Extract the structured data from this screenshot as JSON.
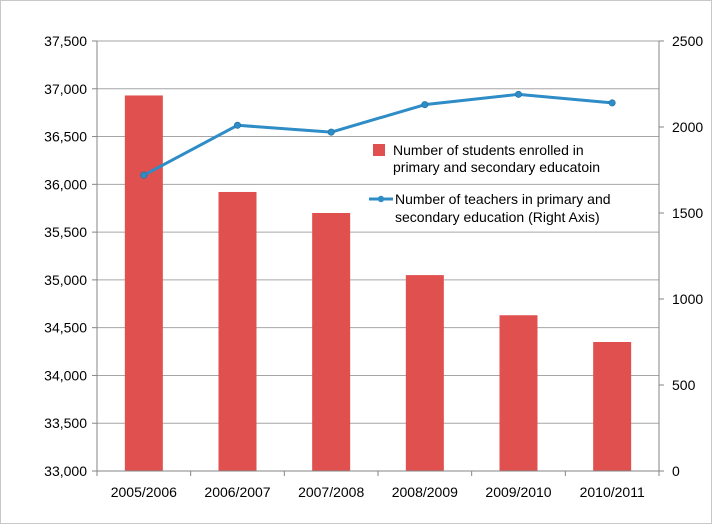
{
  "chart_data": {
    "type": "bar",
    "categories": [
      "2005/2006",
      "2006/2007",
      "2007/2008",
      "2008/2009",
      "2009/2010",
      "2010/2011"
    ],
    "series": [
      {
        "name": "Number of students enrolled in primary and secondary educatoin",
        "type": "bar",
        "axis": "left",
        "color": "#e0504e",
        "values": [
          36930,
          35920,
          35700,
          35050,
          34630,
          34350
        ]
      },
      {
        "name": "Number of teachers in primary and secondary education (Right Axis)",
        "type": "line",
        "axis": "right",
        "color": "#2e8cc6",
        "values": [
          1720,
          2010,
          1970,
          2130,
          2190,
          2140
        ]
      }
    ],
    "y_left": {
      "lim": [
        33000,
        37500
      ],
      "ticks": [
        33000,
        33500,
        34000,
        34500,
        35000,
        35500,
        36000,
        36500,
        37000,
        37500
      ],
      "tick_labels": [
        "33,000",
        "33,500",
        "34,000",
        "34,500",
        "35,000",
        "35,500",
        "36,000",
        "36,500",
        "37,000",
        "37,500"
      ]
    },
    "y_right": {
      "lim": [
        0,
        2500
      ],
      "ticks": [
        0,
        500,
        1000,
        1500,
        2000,
        2500
      ],
      "tick_labels": [
        "0",
        "500",
        "1000",
        "1500",
        "2000",
        "2500"
      ]
    },
    "legend": {
      "placement": "upper-right inside plot",
      "bar_label_lines": [
        "Number of students enrolled in",
        "primary and secondary educatoin"
      ],
      "line_label_lines": [
        "Number of teachers in primary and",
        "secondary education (Right Axis)"
      ]
    },
    "grid": "horizontal major gridlines",
    "colors": {
      "bar": "#e0504e",
      "line": "#2e8cc6",
      "grid": "#a6a6a6",
      "axis": "#868686"
    }
  }
}
